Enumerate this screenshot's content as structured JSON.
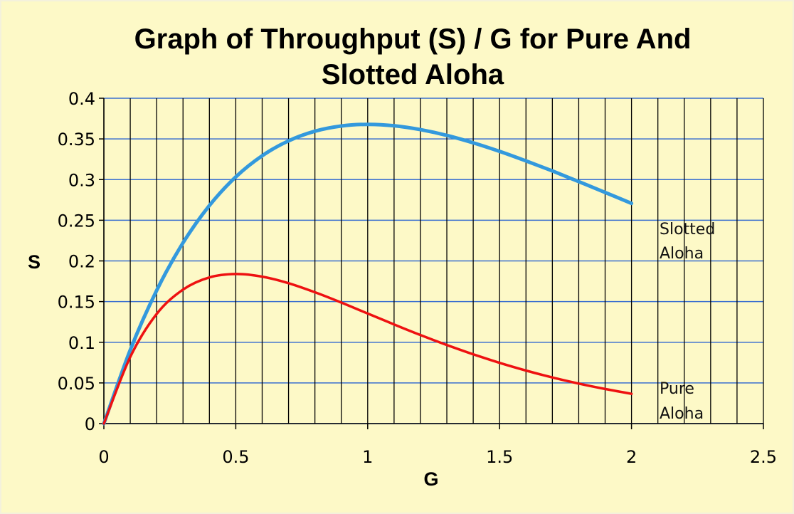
{
  "chart_data": {
    "type": "line",
    "title_lines": [
      "Graph of Throughput (S) / G for Pure And",
      "Slotted Aloha"
    ],
    "xlabel": "G",
    "ylabel": "S",
    "xlim": [
      0,
      2.5
    ],
    "ylim": [
      0,
      0.4
    ],
    "x_ticks": [
      "0",
      "0.5",
      "1",
      "1.5",
      "2",
      "2.5"
    ],
    "y_ticks": [
      "0",
      "0.05",
      "0.1",
      "0.15",
      "0.2",
      "0.25",
      "0.3",
      "0.35",
      "0.4"
    ],
    "grid": {
      "horizontal": true,
      "vertical": true
    },
    "x": [
      0,
      0.1,
      0.2,
      0.3,
      0.4,
      0.5,
      0.6,
      0.7,
      0.8,
      0.9,
      1.0,
      1.1,
      1.2,
      1.3,
      1.4,
      1.5,
      1.6,
      1.7,
      1.8,
      1.9,
      2.0
    ],
    "series": [
      {
        "annotation_lines": [
          "Slotted",
          "Aloha"
        ],
        "color": "#3399dd",
        "values": [
          0,
          0.0905,
          0.1637,
          0.2222,
          0.2681,
          0.3033,
          0.3293,
          0.3476,
          0.3595,
          0.3659,
          0.3679,
          0.3662,
          0.3614,
          0.3543,
          0.3452,
          0.3347,
          0.323,
          0.3106,
          0.2975,
          0.2842,
          0.2707
        ]
      },
      {
        "annotation_lines": [
          "Pure",
          "Aloha"
        ],
        "color": "#ee1111",
        "values": [
          0,
          0.0819,
          0.1348,
          0.1647,
          0.1797,
          0.1839,
          0.1807,
          0.1726,
          0.1615,
          0.1488,
          0.1353,
          0.1219,
          0.1089,
          0.0966,
          0.0852,
          0.0747,
          0.0652,
          0.0567,
          0.0492,
          0.0425,
          0.0366
        ]
      }
    ]
  }
}
